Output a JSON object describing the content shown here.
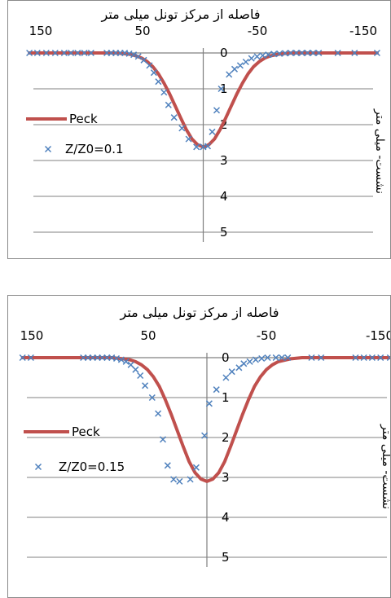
{
  "chart_data": [
    {
      "type": "line",
      "title": "فاصله از مرکز تونل میلی متر",
      "ylabel": "نشست- میلی متر",
      "xlim": [
        150,
        -150
      ],
      "ylim": [
        0,
        5
      ],
      "x_ticks": [
        "150",
        "50",
        "-50",
        "-150"
      ],
      "y_ticks": [
        "0",
        "1",
        "2",
        "3",
        "4",
        "5"
      ],
      "grid": "horizontal",
      "legend_position": "left",
      "colors": {
        "line": "#c0504d",
        "marker": "#4f81bd",
        "axis": "#808080",
        "grid": "#808080"
      },
      "series": [
        {
          "name": "Peck",
          "kind": "line",
          "x": [
            155,
            140,
            120,
            100,
            90,
            80,
            70,
            65,
            60,
            55,
            50,
            45,
            40,
            35,
            30,
            25,
            20,
            15,
            10,
            5,
            0,
            -5,
            -10,
            -15,
            -20,
            -25,
            -30,
            -35,
            -40,
            -45,
            -50,
            -55,
            -60,
            -70,
            -80,
            -90,
            -100,
            -120,
            -140,
            -155
          ],
          "y": [
            0,
            0,
            0,
            0,
            0,
            0,
            0.02,
            0.04,
            0.08,
            0.14,
            0.24,
            0.38,
            0.58,
            0.84,
            1.14,
            1.48,
            1.82,
            2.14,
            2.4,
            2.56,
            2.62,
            2.56,
            2.4,
            2.14,
            1.82,
            1.48,
            1.14,
            0.84,
            0.58,
            0.38,
            0.24,
            0.14,
            0.08,
            0.02,
            0,
            0,
            0,
            0,
            0,
            0
          ]
        },
        {
          "name": "Z/Z0=0.1",
          "kind": "scatter",
          "x": [
            155,
            148,
            140,
            132,
            124,
            118,
            112,
            106,
            100,
            86,
            82,
            78,
            74,
            70,
            66,
            62,
            58,
            53,
            48,
            44,
            40,
            35,
            31,
            26,
            19,
            13,
            6,
            0,
            -4,
            -8,
            -12,
            -16,
            -23,
            -28,
            -33,
            -38,
            -43,
            -48,
            -53,
            -58,
            -63,
            -68,
            -73,
            -78,
            -83,
            -88,
            -93,
            -98,
            -103,
            -120,
            -135,
            -155
          ],
          "y": [
            0,
            0,
            0,
            0,
            0,
            0,
            0,
            0,
            0,
            0,
            0,
            0,
            0,
            0,
            0.02,
            0.05,
            0.1,
            0.2,
            0.35,
            0.55,
            0.8,
            1.1,
            1.45,
            1.8,
            2.1,
            2.4,
            2.62,
            2.62,
            2.6,
            2.2,
            1.6,
            1.0,
            0.6,
            0.45,
            0.35,
            0.25,
            0.15,
            0.1,
            0.07,
            0.05,
            0.03,
            0.02,
            0.01,
            0,
            0,
            0,
            0,
            0,
            0,
            0,
            0,
            0
          ]
        }
      ]
    },
    {
      "type": "line",
      "title": "فاصله از مرکز تونل میلی متر",
      "ylabel": "نشست- میلی متر",
      "xlim": [
        150,
        -150
      ],
      "ylim": [
        0,
        5
      ],
      "x_ticks": [
        "150",
        "50",
        "-50",
        "-150"
      ],
      "y_ticks": [
        "0",
        "1",
        "2",
        "3",
        "4",
        "5"
      ],
      "grid": "horizontal",
      "legend_position": "left",
      "colors": {
        "line": "#c0504d",
        "marker": "#4f81bd",
        "axis": "#808080",
        "grid": "#808080"
      },
      "series": [
        {
          "name": "Peck",
          "kind": "line",
          "x": [
            155,
            140,
            120,
            100,
            90,
            80,
            70,
            65,
            60,
            55,
            50,
            45,
            40,
            35,
            30,
            25,
            20,
            15,
            10,
            5,
            0,
            -5,
            -10,
            -15,
            -20,
            -25,
            -30,
            -35,
            -40,
            -45,
            -50,
            -55,
            -60,
            -70,
            -80,
            -90,
            -100,
            -120,
            -140,
            -155
          ],
          "y": [
            0,
            0,
            0,
            0,
            0,
            0,
            0.03,
            0.05,
            0.1,
            0.18,
            0.3,
            0.48,
            0.72,
            1.05,
            1.42,
            1.82,
            2.22,
            2.6,
            2.88,
            3.04,
            3.1,
            3.04,
            2.88,
            2.6,
            2.22,
            1.82,
            1.42,
            1.05,
            0.72,
            0.48,
            0.3,
            0.18,
            0.1,
            0.03,
            0,
            0,
            0,
            0,
            0,
            0
          ]
        },
        {
          "name": "Z/Z0=0.15",
          "kind": "scatter",
          "x": [
            155,
            148,
            104,
            100,
            96,
            92,
            88,
            84,
            80,
            76,
            72,
            68,
            64,
            60,
            56,
            52,
            46,
            41,
            37,
            33,
            28,
            23,
            14,
            9,
            2,
            -2,
            -8,
            -16,
            -21,
            -27,
            -31,
            -36,
            -41,
            -46,
            -51,
            -58,
            -63,
            -68,
            -88,
            -96,
            -125,
            -132,
            -139,
            -146,
            -154
          ],
          "y": [
            0,
            0,
            0,
            0,
            0,
            0,
            0,
            0,
            0,
            0.02,
            0.05,
            0.1,
            0.18,
            0.3,
            0.45,
            0.7,
            1.0,
            1.4,
            2.05,
            2.7,
            3.05,
            3.1,
            3.05,
            2.75,
            1.95,
            1.15,
            0.8,
            0.5,
            0.35,
            0.25,
            0.15,
            0.1,
            0.05,
            0.02,
            0,
            0,
            0,
            0,
            0,
            0,
            0,
            0,
            0,
            0,
            0
          ]
        }
      ]
    }
  ]
}
